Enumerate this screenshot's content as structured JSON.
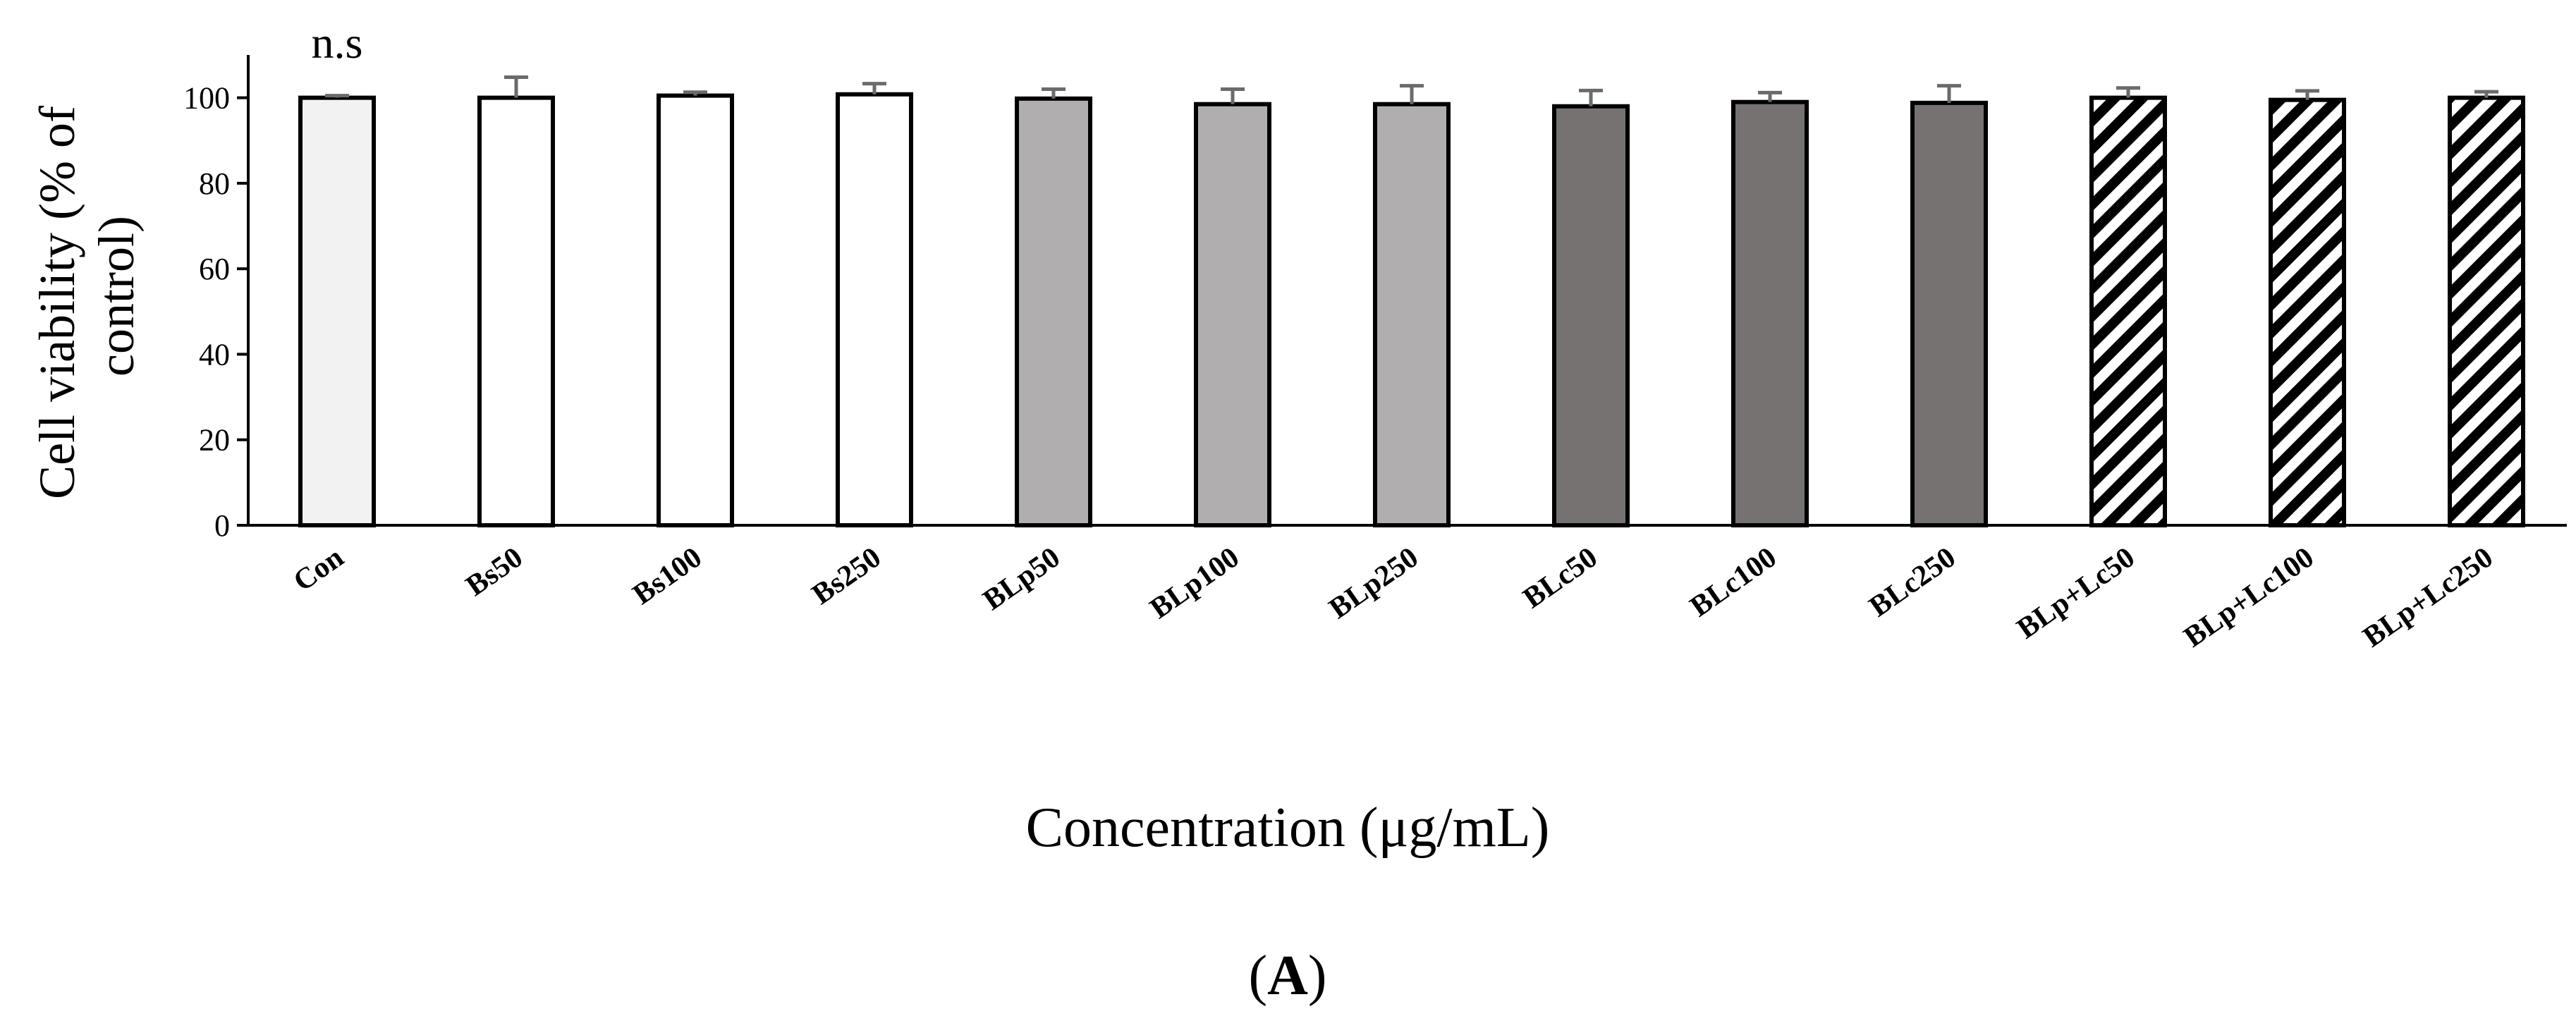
{
  "chart_data": {
    "type": "bar",
    "title": "",
    "ylabel_lines": [
      "Cell viability (% of",
      "control)"
    ],
    "xlabel": "Concentration (μg/mL)",
    "panel_label_parts": [
      "(",
      "A",
      ")"
    ],
    "annotation": "n.s",
    "ylim": [
      0,
      110
    ],
    "yticks": [
      0,
      20,
      40,
      60,
      80,
      100
    ],
    "grid": false,
    "categories": [
      "Con",
      "Bs50",
      "Bs100",
      "Bs250",
      "BLp50",
      "BLp100",
      "BLp250",
      "BLc50",
      "BLc100",
      "BLc250",
      "BLp+Lc50",
      "BLp+Lc100",
      "BLp+Lc250"
    ],
    "values": [
      100,
      100,
      100.5,
      100.8,
      99.8,
      98.5,
      98.5,
      98.0,
      99.0,
      98.8,
      100,
      99.5,
      100
    ],
    "errors": [
      0.5,
      4.8,
      0.8,
      2.5,
      2.2,
      3.5,
      4.3,
      3.7,
      2.2,
      4.0,
      2.3,
      2.1,
      1.4
    ],
    "bar_styles": [
      "#f2f2f2",
      "#ffffff",
      "#ffffff",
      "#ffffff",
      "#b0aeae",
      "#b0aeae",
      "#b0aeae",
      "#777272",
      "#777272",
      "#777272",
      "hatch",
      "hatch",
      "hatch"
    ],
    "error_bar_color": "#6b6b6b",
    "axis_color": "#000000"
  }
}
